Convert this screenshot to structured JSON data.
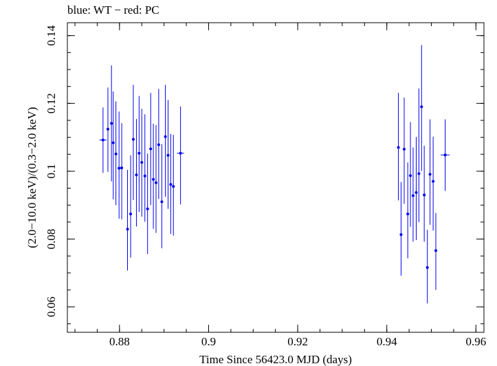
{
  "chart_data": {
    "type": "scatter",
    "title": "blue: WT − red: PC",
    "xlabel": "Time Since 56423.0 MJD (days)",
    "ylabel": "(2.0−10.0 keV)/(0.3−2.0 keV)",
    "xlim": [
      0.8683,
      0.9618
    ],
    "ylim": [
      0.0525,
      0.1438
    ],
    "x_ticks": [
      {
        "value": 0.88,
        "label": "0.88"
      },
      {
        "value": 0.9,
        "label": "0.9"
      },
      {
        "value": 0.92,
        "label": "0.92"
      },
      {
        "value": 0.94,
        "label": "0.94"
      },
      {
        "value": 0.96,
        "label": "0.96"
      }
    ],
    "y_ticks": [
      {
        "value": 0.06,
        "label": "0.06"
      },
      {
        "value": 0.08,
        "label": "0.08"
      },
      {
        "value": 0.1,
        "label": "0.1"
      },
      {
        "value": 0.12,
        "label": "0.12"
      },
      {
        "value": 0.14,
        "label": "0.14"
      }
    ],
    "x_minor_step": 0.005,
    "y_minor_step": 0.005,
    "grid": false,
    "color": "#0000ee",
    "series": [
      {
        "points": [
          {
            "x": 0.8763,
            "y": 0.1092,
            "xerr": 0.0008,
            "ylo": 0.0995,
            "yhi": 0.1188
          },
          {
            "x": 0.8774,
            "y": 0.1124,
            "xerr": 0.0003,
            "ylo": 0.0998,
            "yhi": 0.1247
          },
          {
            "x": 0.8782,
            "y": 0.1141,
            "xerr": 0.0003,
            "ylo": 0.097,
            "yhi": 0.1312
          },
          {
            "x": 0.8786,
            "y": 0.1084,
            "xerr": 0.0003,
            "ylo": 0.0917,
            "yhi": 0.1235
          },
          {
            "x": 0.8792,
            "y": 0.1051,
            "xerr": 0.0003,
            "ylo": 0.09,
            "yhi": 0.1206
          },
          {
            "x": 0.8799,
            "y": 0.1009,
            "xerr": 0.0003,
            "ylo": 0.086,
            "yhi": 0.1176
          },
          {
            "x": 0.8805,
            "y": 0.101,
            "xerr": 0.0003,
            "ylo": 0.0858,
            "yhi": 0.1142
          },
          {
            "x": 0.8818,
            "y": 0.0829,
            "xerr": 0.0003,
            "ylo": 0.0707,
            "yhi": 0.1004
          },
          {
            "x": 0.8825,
            "y": 0.0874,
            "xerr": 0.0003,
            "ylo": 0.0745,
            "yhi": 0.1047
          },
          {
            "x": 0.8831,
            "y": 0.1094,
            "xerr": 0.0003,
            "ylo": 0.0915,
            "yhi": 0.1255
          },
          {
            "x": 0.8838,
            "y": 0.0989,
            "xerr": 0.0003,
            "ylo": 0.0837,
            "yhi": 0.1154
          },
          {
            "x": 0.8844,
            "y": 0.1053,
            "xerr": 0.0003,
            "ylo": 0.088,
            "yhi": 0.1222
          },
          {
            "x": 0.885,
            "y": 0.1026,
            "xerr": 0.0003,
            "ylo": 0.0866,
            "yhi": 0.1184
          },
          {
            "x": 0.8857,
            "y": 0.0986,
            "xerr": 0.0003,
            "ylo": 0.0851,
            "yhi": 0.1168
          },
          {
            "x": 0.8863,
            "y": 0.0889,
            "xerr": 0.0003,
            "ylo": 0.0756,
            "yhi": 0.1052
          },
          {
            "x": 0.887,
            "y": 0.1066,
            "xerr": 0.0003,
            "ylo": 0.09,
            "yhi": 0.1231
          },
          {
            "x": 0.8876,
            "y": 0.0976,
            "xerr": 0.0003,
            "ylo": 0.083,
            "yhi": 0.114
          },
          {
            "x": 0.8882,
            "y": 0.0966,
            "xerr": 0.0003,
            "ylo": 0.0818,
            "yhi": 0.1136
          },
          {
            "x": 0.8888,
            "y": 0.1078,
            "xerr": 0.0003,
            "ylo": 0.0918,
            "yhi": 0.1243
          },
          {
            "x": 0.8895,
            "y": 0.091,
            "xerr": 0.0003,
            "ylo": 0.0773,
            "yhi": 0.108
          },
          {
            "x": 0.8903,
            "y": 0.1102,
            "xerr": 0.0003,
            "ylo": 0.0925,
            "yhi": 0.1255
          },
          {
            "x": 0.8909,
            "y": 0.1047,
            "xerr": 0.0003,
            "ylo": 0.0889,
            "yhi": 0.121
          },
          {
            "x": 0.8915,
            "y": 0.0961,
            "xerr": 0.0003,
            "ylo": 0.0815,
            "yhi": 0.111
          },
          {
            "x": 0.8921,
            "y": 0.0955,
            "xerr": 0.0003,
            "ylo": 0.081,
            "yhi": 0.1107
          },
          {
            "x": 0.8937,
            "y": 0.1053,
            "xerr": 0.0008,
            "ylo": 0.0902,
            "yhi": 0.1191
          },
          {
            "x": 0.9426,
            "y": 0.107,
            "xerr": 0.0003,
            "ylo": 0.0914,
            "yhi": 0.1231
          },
          {
            "x": 0.9432,
            "y": 0.0813,
            "xerr": 0.0003,
            "ylo": 0.0692,
            "yhi": 0.0968
          },
          {
            "x": 0.9439,
            "y": 0.1065,
            "xerr": 0.0003,
            "ylo": 0.0904,
            "yhi": 0.1217
          },
          {
            "x": 0.9447,
            "y": 0.0874,
            "xerr": 0.0003,
            "ylo": 0.0743,
            "yhi": 0.1026
          },
          {
            "x": 0.9453,
            "y": 0.0987,
            "xerr": 0.0003,
            "ylo": 0.0836,
            "yhi": 0.1145
          },
          {
            "x": 0.9459,
            "y": 0.0928,
            "xerr": 0.0003,
            "ylo": 0.0792,
            "yhi": 0.107
          },
          {
            "x": 0.9466,
            "y": 0.0937,
            "xerr": 0.0003,
            "ylo": 0.0797,
            "yhi": 0.1101
          },
          {
            "x": 0.9472,
            "y": 0.0993,
            "xerr": 0.0003,
            "ylo": 0.085,
            "yhi": 0.1244
          },
          {
            "x": 0.9478,
            "y": 0.119,
            "xerr": 0.0003,
            "ylo": 0.1001,
            "yhi": 0.1372
          },
          {
            "x": 0.9484,
            "y": 0.093,
            "xerr": 0.0003,
            "ylo": 0.0792,
            "yhi": 0.1075
          },
          {
            "x": 0.9491,
            "y": 0.0716,
            "xerr": 0.0003,
            "ylo": 0.061,
            "yhi": 0.0827
          },
          {
            "x": 0.9497,
            "y": 0.0991,
            "xerr": 0.0003,
            "ylo": 0.0842,
            "yhi": 0.1153
          },
          {
            "x": 0.9504,
            "y": 0.097,
            "xerr": 0.0003,
            "ylo": 0.0825,
            "yhi": 0.1102
          },
          {
            "x": 0.951,
            "y": 0.0766,
            "xerr": 0.0003,
            "ylo": 0.065,
            "yhi": 0.0877
          },
          {
            "x": 0.9531,
            "y": 0.1048,
            "xerr": 0.001,
            "ylo": 0.0942,
            "yhi": 0.1153
          }
        ]
      }
    ]
  }
}
